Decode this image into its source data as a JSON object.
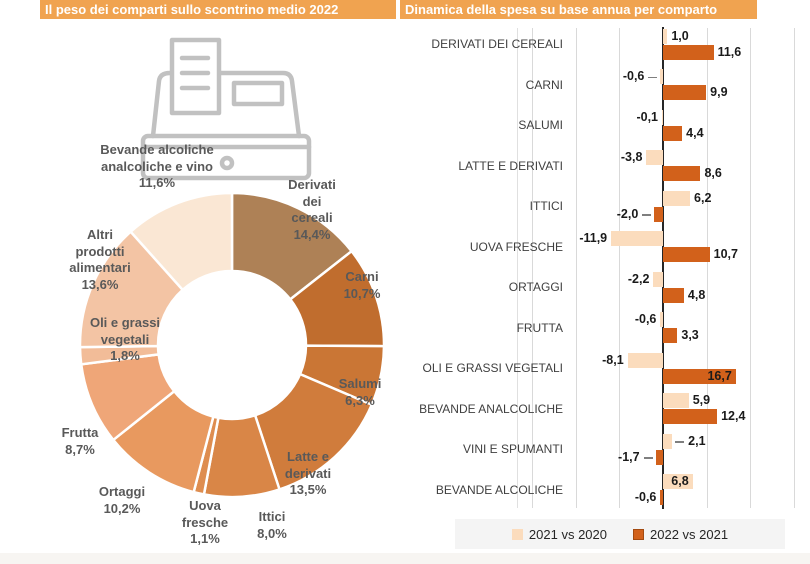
{
  "left_panel": {
    "title": "Il peso dei comparti sullo scontrino medio 2022"
  },
  "right_panel": {
    "title": "Dinamica della spesa su base annua per comparto"
  },
  "colors": {
    "header_bg": "#f0a350",
    "header_text": "#ffffff",
    "bar_2021_light": "#fbdcbd",
    "bar_2022_dark": "#d2611b",
    "gridline": "#d9d9d9",
    "zero_axis": "#262626",
    "donut_label_text": "#595959",
    "legend_bg": "#f4f4f4",
    "register_icon_gray": "#c1c1c1"
  },
  "icons": [
    {
      "name": "cash-register-icon"
    }
  ],
  "legend": {
    "items": [
      {
        "label": "2021 vs 2020"
      },
      {
        "label": "2022 vs 2021"
      }
    ]
  },
  "chart_data": [
    {
      "type": "pie",
      "subtype": "donut",
      "title": "Il peso dei comparti sullo scontrino medio 2022",
      "unit": "%",
      "start_angle": "top",
      "direction": "clockwise",
      "slices": [
        {
          "label": "Derivati dei cereali",
          "display_label": "Derivati\ndei\ncereali",
          "value": 14.4,
          "display_value": "14,4%",
          "color": "#ae8156"
        },
        {
          "label": "Carni",
          "display_label": "Carni",
          "value": 10.7,
          "display_value": "10,7%",
          "color": "#c06d2e"
        },
        {
          "label": "Salumi",
          "display_label": "Salumi",
          "value": 6.3,
          "display_value": "6,3%",
          "color": "#ca7635"
        },
        {
          "label": "Latte e derivati",
          "display_label": "Latte e\nderivati",
          "value": 13.5,
          "display_value": "13,5%",
          "color": "#d07c3c"
        },
        {
          "label": "Ittici",
          "display_label": "Ittici",
          "value": 8.0,
          "display_value": "8,0%",
          "color": "#d98647"
        },
        {
          "label": "Uova fresche",
          "display_label": "Uova\nfresche",
          "value": 1.1,
          "display_value": "1,1%",
          "color": "#de8d50"
        },
        {
          "label": "Ortaggi",
          "display_label": "Ortaggi",
          "value": 10.2,
          "display_value": "10,2%",
          "color": "#e8995f"
        },
        {
          "label": "Frutta",
          "display_label": "Frutta",
          "value": 8.7,
          "display_value": "8,7%",
          "color": "#efa678"
        },
        {
          "label": "Oli e grassi vegetali",
          "display_label": "Oli e grassi\nvegetali",
          "value": 1.8,
          "display_value": "1,8%",
          "color": "#f2bc98"
        },
        {
          "label": "Altri prodotti alimentari",
          "display_label": "Altri\nprodotti\nalimentari",
          "value": 13.6,
          "display_value": "13,6%",
          "color": "#f3c4a4"
        },
        {
          "label": "Bevande alcoliche analcoliche e vino",
          "display_label": "Bevande alcoliche\nanalcoliche e vino",
          "value": 11.6,
          "display_value": "11,6%",
          "color": "#fae7d4"
        }
      ]
    },
    {
      "type": "bar",
      "orientation": "horizontal",
      "title": "Dinamica della spesa su base annua per comparto",
      "unit": "%",
      "categories": [
        "DERIVATI DEI CEREALI",
        "CARNI",
        "SALUMI",
        "LATTE E DERIVATI",
        "ITTICI",
        "UOVA FRESCHE",
        "ORTAGGI",
        "FRUTTA",
        "OLI E GRASSI VEGETALI",
        "BEVANDE ANALCOLICHE",
        "VINI E SPUMANTI",
        "BEVANDE ALCOLICHE"
      ],
      "series": [
        {
          "name": "2021 vs 2020",
          "color": "#fbdcbd",
          "values": [
            1.0,
            -0.6,
            -0.1,
            -3.8,
            6.2,
            -11.9,
            -2.2,
            -0.6,
            -8.1,
            5.9,
            2.1,
            6.8
          ]
        },
        {
          "name": "2022 vs 2021",
          "color": "#d2611b",
          "values": [
            11.6,
            9.9,
            4.4,
            8.6,
            -2.0,
            10.7,
            4.8,
            3.3,
            16.7,
            12.4,
            -1.7,
            -0.6
          ]
        }
      ],
      "xlim": [
        -33,
        30.5
      ],
      "gridline_step": 10,
      "grid": true,
      "value_labels": true,
      "decimal_separator": ",",
      "legend_position": "bottom"
    }
  ]
}
